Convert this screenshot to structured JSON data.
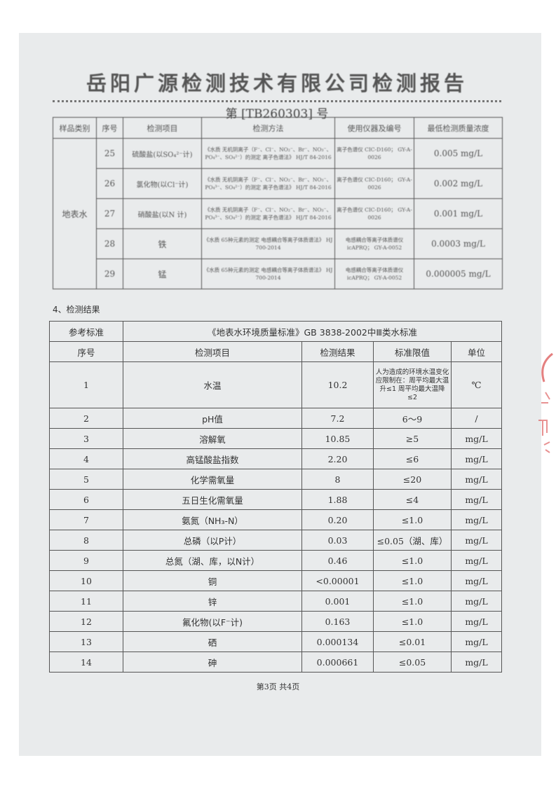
{
  "title": "岳阳广源检测技术有限公司检测报告",
  "report_no": "第 [TB260303] 号",
  "method_table": {
    "headers": [
      "样品类别",
      "序号",
      "检测项目",
      "检测方法",
      "使用仪器及编号",
      "最低检测质量浓度"
    ],
    "category": "地表水",
    "rows": [
      {
        "no": "25",
        "item": "硫酸盐(以SO₄²⁻计)",
        "method": "《水质 无机阴离子（F⁻、Cl⁻、NO₂⁻、Br⁻、NO₃⁻、PO₄³⁻、SO₄²⁻）的测定 离子色谱法》 HJ/T 84-2016",
        "instrument": "离子色谱仪 CIC-D160； GY-A-0026",
        "limit": "0.005 mg/L"
      },
      {
        "no": "26",
        "item": "氯化物(以Cl⁻计)",
        "method": "《水质 无机阴离子（F⁻、Cl⁻、NO₂⁻、Br⁻、NO₃⁻、PO₄³⁻、SO₄²⁻）的测定 离子色谱法》 HJ/T 84-2016",
        "instrument": "离子色谱仪 CIC-D160； GY-A-0026",
        "limit": "0.002 mg/L"
      },
      {
        "no": "27",
        "item": "硝酸盐(以N 计)",
        "method": "《水质 无机阴离子（F⁻、Cl⁻、NO₂⁻、Br⁻、NO₃⁻、PO₄³⁻、SO₄²⁻）的测定 离子色谱法》 HJ/T 84-2016",
        "instrument": "离子色谱仪 CIC-D160； GY-A-0026",
        "limit": "0.001 mg/L"
      },
      {
        "no": "28",
        "item": "铁",
        "method": "《水质 65种元素的测定 电感耦合等离子体质谱法》 HJ 700-2014",
        "instrument": "电感耦合等离子体质谱仪icAPRQ； GY-A-0052",
        "limit": "0.0003 mg/L"
      },
      {
        "no": "29",
        "item": "锰",
        "method": "《水质 65种元素的测定 电感耦合等离子体质谱法》 HJ 700-2014",
        "instrument": "电感耦合等离子体质谱仪icAPRQ； GY-A-0052",
        "limit": "0.000005 mg/L"
      }
    ]
  },
  "results_section": "4、检测结果",
  "results_table": {
    "ref_label": "参考标准",
    "ref_value": "《地表水环境质量标准》GB 3838-2002中Ⅲ类水标准",
    "headers": [
      "序号",
      "检测项目",
      "检测结果",
      "标准限值",
      "单位"
    ],
    "rows": [
      {
        "no": "1",
        "item": "水温",
        "result": "10.2",
        "limit": "人为造成的环境水温变化应限制在：周平均最大温升≤1 周平均最大温降≤2",
        "unit": "℃"
      },
      {
        "no": "2",
        "item": "pH值",
        "result": "7.2",
        "limit": "6～9",
        "unit": "/"
      },
      {
        "no": "3",
        "item": "溶解氧",
        "result": "10.85",
        "limit": "≥5",
        "unit": "mg/L"
      },
      {
        "no": "4",
        "item": "高锰酸盐指数",
        "result": "2.20",
        "limit": "≤6",
        "unit": "mg/L"
      },
      {
        "no": "5",
        "item": "化学需氧量",
        "result": "8",
        "limit": "≤20",
        "unit": "mg/L"
      },
      {
        "no": "6",
        "item": "五日生化需氧量",
        "result": "1.88",
        "limit": "≤4",
        "unit": "mg/L"
      },
      {
        "no": "7",
        "item": "氨氮（NH₃-N）",
        "result": "0.20",
        "limit": "≤1.0",
        "unit": "mg/L"
      },
      {
        "no": "8",
        "item": "总磷（以P计）",
        "result": "0.03",
        "limit": "≤0.05（湖、库）",
        "unit": "mg/L"
      },
      {
        "no": "9",
        "item": "总氮（湖、库，以N计）",
        "result": "0.46",
        "limit": "≤1.0",
        "unit": "mg/L"
      },
      {
        "no": "10",
        "item": "铜",
        "result": "<0.00001",
        "limit": "≤1.0",
        "unit": "mg/L"
      },
      {
        "no": "11",
        "item": "锌",
        "result": "0.001",
        "limit": "≤1.0",
        "unit": "mg/L"
      },
      {
        "no": "12",
        "item": "氟化物(以F⁻计)",
        "result": "0.163",
        "limit": "≤1.0",
        "unit": "mg/L"
      },
      {
        "no": "13",
        "item": "硒",
        "result": "0.000134",
        "limit": "≤0.01",
        "unit": "mg/L"
      },
      {
        "no": "14",
        "item": "砷",
        "result": "0.000661",
        "limit": "≤0.05",
        "unit": "mg/L"
      }
    ]
  },
  "footer": "第3页  共4页",
  "colors": {
    "paper": "#e9ebec",
    "stamp": "#d94a4a"
  }
}
